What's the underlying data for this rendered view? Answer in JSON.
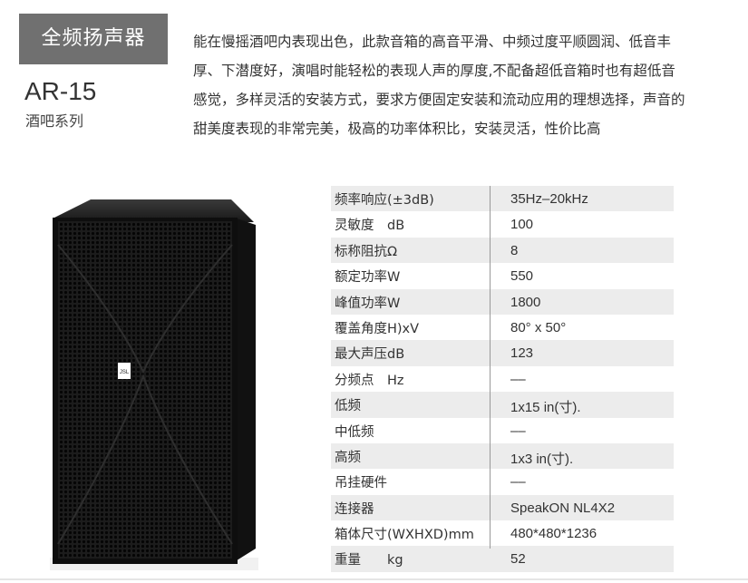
{
  "header": {
    "category": "全频扬声器",
    "model": "AR-15",
    "series": "酒吧系列"
  },
  "description": {
    "lines": [
      "能在慢摇酒吧内表现出色，此款音箱的高音平滑、中频过度平顺圆润、低音丰",
      "厚、下潜度好，演唱时能轻松的表现人声的厚度,不配备超低音箱时也有超低音",
      "感觉，多样灵活的安装方式，要求方便固定安装和流动应用的理想选择，声音的",
      "甜美度表现的非常完美，极高的功率体积比，安装灵活，性价比高"
    ]
  },
  "product_image": {
    "logo": "JSL"
  },
  "specs": [
    {
      "label": "频率响应(±3dB)",
      "value": "35Hz–20kHz"
    },
    {
      "label": "灵敏度　dB",
      "value": "100"
    },
    {
      "label": "标称阻抗Ω",
      "value": "8"
    },
    {
      "label": "额定功率W",
      "value": "550"
    },
    {
      "label": "峰值功率W",
      "value": "1800"
    },
    {
      "label": "覆盖角度H)xV",
      "value": "80°  x 50°"
    },
    {
      "label": "最大声压dB",
      "value": "123"
    },
    {
      "label": "分频点　Hz",
      "value": "––"
    },
    {
      "label": "低频",
      "value": "1x15 in(寸)."
    },
    {
      "label": "中低频",
      "value": "––"
    },
    {
      "label": "高频",
      "value": "1x3 in(寸)."
    },
    {
      "label": "吊挂硬件",
      "value": "––"
    },
    {
      "label": "连接器",
      "value": "SpeakON NL4X2"
    },
    {
      "label": "箱体尺寸(WXHXD)mm",
      "value": "480*480*1236"
    },
    {
      "label": "重量　　kg",
      "value": "52"
    }
  ],
  "colors": {
    "badge": "#707070",
    "stripe": "#ececec"
  }
}
